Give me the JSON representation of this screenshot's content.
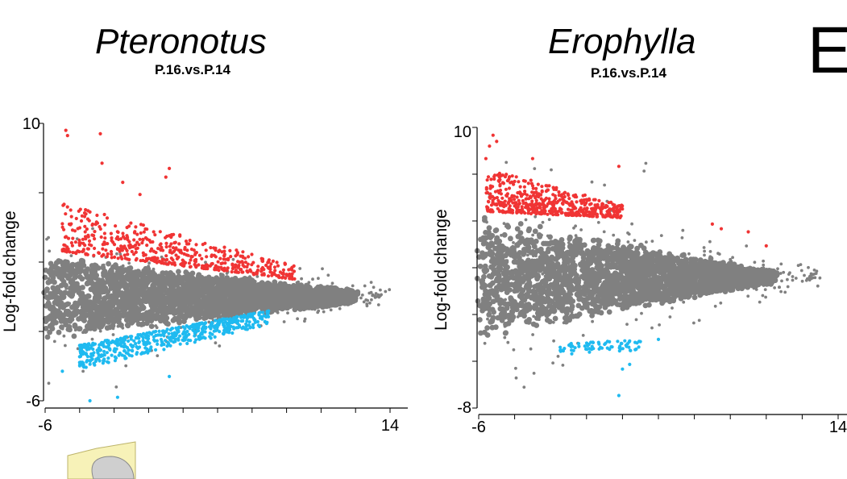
{
  "panel_letter": "E",
  "chart_data": [
    {
      "type": "scatter",
      "title": "Pteronotus",
      "subtitle": "P.16.vs.P.14",
      "ylabel": "Log-fold change",
      "xlabel": "",
      "xlim": [
        -6,
        14
      ],
      "ylim": [
        -6,
        10
      ],
      "x_tick_labels": [
        "-6",
        "14"
      ],
      "y_tick_labels": [
        "10",
        "-6"
      ],
      "grid": false,
      "legend": "none",
      "series": [
        {
          "role": "not-significant",
          "color": "#808080",
          "shape": {
            "x_start": -6,
            "x_end": 12,
            "center": 0,
            "half_width_start": 2.5,
            "half_width_end": 0.4,
            "outliers_to_x": 14
          }
        },
        {
          "role": "up-regulated",
          "color": "#f03434",
          "shape": {
            "x_start": -5,
            "x_end": 8.5,
            "lower_start": 2.6,
            "upper_start": 5.4,
            "lower_end": 1.0,
            "upper_end": 1.8
          },
          "outliers": [
            [
              -4.8,
              9.6
            ],
            [
              -4.7,
              9.3
            ],
            [
              -2.8,
              9.4
            ],
            [
              -2.7,
              7.7
            ],
            [
              1.2,
              7.4
            ],
            [
              1.0,
              6.9
            ],
            [
              -1.5,
              6.6
            ],
            [
              -0.5,
              5.9
            ]
          ]
        },
        {
          "role": "down-regulated",
          "color": "#1fbaf0",
          "shape": {
            "x_start": -4,
            "x_end": 7,
            "upper_start": -2.8,
            "lower_start": -4.2,
            "upper_end": -0.8,
            "lower_end": -1.6
          },
          "outliers": [
            [
              -5.0,
              -4.3
            ],
            [
              -3.4,
              -6.0
            ],
            [
              -1.8,
              -5.8
            ],
            [
              1.2,
              -4.6
            ]
          ]
        }
      ]
    },
    {
      "type": "scatter",
      "title": "Erophylla",
      "subtitle": "P.16.vs.P.14",
      "ylabel": "Log-fold change",
      "xlabel": "",
      "xlim": [
        -6,
        14
      ],
      "ylim": [
        -8,
        10
      ],
      "x_tick_labels": [
        "-6",
        "14"
      ],
      "y_tick_labels": [
        "10",
        "-8"
      ],
      "grid": false,
      "legend": "none",
      "series": [
        {
          "role": "not-significant",
          "color": "#808080",
          "shape": {
            "x_start": -6,
            "x_end": 10.5,
            "center": 0.4,
            "half_width_start": 4.0,
            "half_width_end": 0.4,
            "outliers_to_x": 13
          },
          "outliers": [
            [
              3.3,
              7.7
            ],
            [
              3.2,
              7.2
            ],
            [
              1.0,
              6.3
            ],
            [
              0.3,
              6.5
            ]
          ]
        },
        {
          "role": "up-regulated",
          "color": "#f03434",
          "shape": {
            "x_start": -5.6,
            "x_end": 2.0,
            "lower_start": 4.6,
            "upper_start": 7.4,
            "lower_end": 4.2,
            "upper_end": 5.0
          },
          "outliers": [
            [
              -5.2,
              9.5
            ],
            [
              -5.0,
              9.1
            ],
            [
              -5.4,
              8.8
            ],
            [
              -5.6,
              8.0
            ],
            [
              -3.0,
              8.0
            ],
            [
              1.8,
              7.5
            ],
            [
              7.0,
              3.8
            ],
            [
              7.5,
              3.5
            ],
            [
              9.0,
              3.3
            ],
            [
              10.0,
              2.4
            ]
          ]
        },
        {
          "role": "down-regulated",
          "color": "#1fbaf0",
          "shape": {
            "x_start": -1.5,
            "x_end": 3.0,
            "upper_start": -3.9,
            "lower_start": -4.6,
            "upper_end": -3.6,
            "lower_end": -4.3
          },
          "outliers": [
            [
              2.0,
              -5.5
            ],
            [
              2.4,
              -5.2
            ],
            [
              4.0,
              -3.6
            ],
            [
              1.8,
              -7.2
            ]
          ]
        }
      ]
    }
  ]
}
